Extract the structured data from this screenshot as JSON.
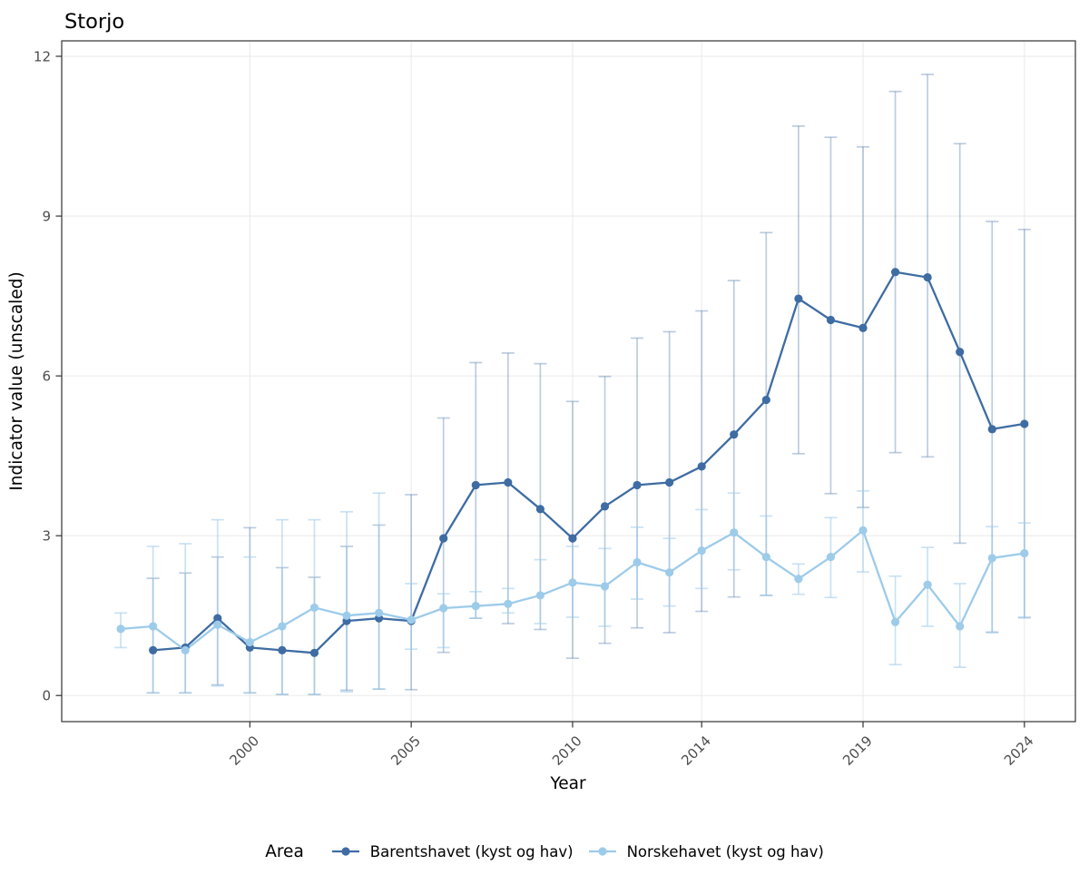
{
  "chart_data": {
    "type": "line",
    "title": "Storjo",
    "xlabel": "Year",
    "ylabel": "Indicator value (unscaled)",
    "x_ticks": [
      2000,
      2005,
      2010,
      2014,
      2019,
      2024
    ],
    "y_ticks": [
      0,
      3,
      6,
      9,
      12
    ],
    "xlim": [
      1994.17,
      2025.58
    ],
    "ylim": [
      -0.49,
      12.29
    ],
    "grid": "major gridlines only, light gray on white panel with dark border",
    "grid_color": "#ebebeb",
    "panel_border_color": "#333333",
    "tick_color": "#333333",
    "tick_label_color": "#4d4d4d",
    "background": "#ffffff",
    "error_bars": "vertical interval with caps, drawn translucent behind lines",
    "legend": {
      "title": "Area",
      "position": "bottom"
    },
    "point_format": [
      "year",
      "value",
      "ci_low",
      "ci_high"
    ],
    "series": [
      {
        "name": "Barentshavet (kyst og hav)",
        "color": "#3e6ca3",
        "error_opacity": 0.35,
        "points": [
          [
            1997,
            0.85,
            0.05,
            2.2
          ],
          [
            1998,
            0.9,
            0.05,
            2.3
          ],
          [
            1999,
            1.45,
            0.2,
            2.6
          ],
          [
            2000,
            0.9,
            0.05,
            3.15
          ],
          [
            2001,
            0.85,
            0.02,
            2.4
          ],
          [
            2002,
            0.8,
            0.02,
            2.22
          ],
          [
            2003,
            1.4,
            0.1,
            2.8
          ],
          [
            2004,
            1.45,
            0.12,
            3.2
          ],
          [
            2005,
            1.4,
            0.11,
            3.77
          ],
          [
            2006,
            2.95,
            0.81,
            5.21
          ],
          [
            2007,
            3.95,
            1.45,
            6.25
          ],
          [
            2008,
            4.0,
            1.35,
            6.43
          ],
          [
            2009,
            3.5,
            1.24,
            6.23
          ],
          [
            2010,
            2.95,
            0.7,
            5.52
          ],
          [
            2011,
            3.55,
            0.98,
            5.99
          ],
          [
            2012,
            3.95,
            1.27,
            6.71
          ],
          [
            2013,
            4.0,
            1.18,
            6.83
          ],
          [
            2014,
            4.3,
            1.58,
            7.22
          ],
          [
            2015,
            4.9,
            1.85,
            7.79
          ],
          [
            2016,
            5.55,
            1.88,
            8.69
          ],
          [
            2017,
            7.45,
            4.54,
            10.69
          ],
          [
            2018,
            7.05,
            3.79,
            10.48
          ],
          [
            2019,
            6.9,
            3.53,
            10.3
          ],
          [
            2020,
            7.95,
            4.56,
            11.34
          ],
          [
            2021,
            7.85,
            4.48,
            11.66
          ],
          [
            2022,
            6.45,
            2.86,
            10.36
          ],
          [
            2023,
            5.0,
            1.19,
            8.9
          ],
          [
            2024,
            5.1,
            1.46,
            8.75
          ]
        ]
      },
      {
        "name": "Norskehavet (kyst og hav)",
        "color": "#9dcbea",
        "error_opacity": 0.55,
        "points": [
          [
            1996,
            1.25,
            0.9,
            1.55
          ],
          [
            1997,
            1.3,
            0.05,
            2.8
          ],
          [
            1998,
            0.85,
            0.05,
            2.85
          ],
          [
            1999,
            1.33,
            0.18,
            3.3
          ],
          [
            2000,
            1.0,
            0.05,
            2.6
          ],
          [
            2001,
            1.3,
            0.02,
            3.3
          ],
          [
            2002,
            1.65,
            0.02,
            3.3
          ],
          [
            2003,
            1.5,
            0.07,
            3.45
          ],
          [
            2004,
            1.55,
            0.12,
            3.8
          ],
          [
            2005,
            1.42,
            0.87,
            2.1
          ],
          [
            2006,
            1.64,
            0.9,
            1.91
          ],
          [
            2007,
            1.68,
            1.45,
            1.95
          ],
          [
            2008,
            1.72,
            1.55,
            2.01
          ],
          [
            2009,
            1.88,
            1.35,
            2.55
          ],
          [
            2010,
            2.12,
            1.47,
            2.8
          ],
          [
            2011,
            2.05,
            1.3,
            2.76
          ],
          [
            2012,
            2.5,
            1.81,
            3.16
          ],
          [
            2013,
            2.31,
            1.68,
            2.95
          ],
          [
            2014,
            2.72,
            2.01,
            3.49
          ],
          [
            2015,
            3.06,
            2.36,
            3.8
          ],
          [
            2016,
            2.6,
            1.88,
            3.37
          ],
          [
            2017,
            2.19,
            1.9,
            2.47
          ],
          [
            2018,
            2.6,
            1.84,
            3.34
          ],
          [
            2019,
            3.1,
            2.32,
            3.84
          ],
          [
            2020,
            1.38,
            0.58,
            2.24
          ],
          [
            2021,
            2.08,
            1.3,
            2.78
          ],
          [
            2022,
            1.3,
            0.53,
            2.1
          ],
          [
            2023,
            2.58,
            1.18,
            3.17
          ],
          [
            2024,
            2.67,
            1.47,
            3.24
          ]
        ]
      }
    ]
  }
}
